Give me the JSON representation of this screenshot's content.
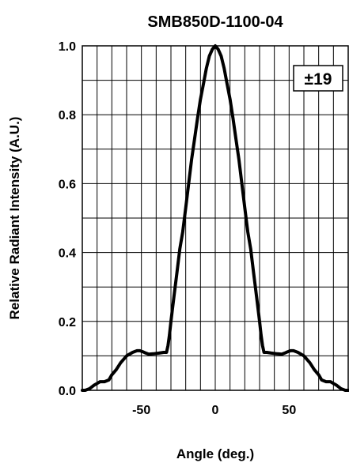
{
  "chart_data": {
    "type": "line",
    "title": "SMB850D-1100-04",
    "xlabel": "Angle (deg.)",
    "ylabel": "Relative Radiant Intensity (A.U.)",
    "xlim": [
      -90,
      90
    ],
    "ylim": [
      0,
      1
    ],
    "xticks": [
      -50,
      0,
      50
    ],
    "xtick_labels": [
      "-50",
      "0",
      "50"
    ],
    "yticks": [
      0,
      0.2,
      0.4,
      0.6,
      0.8,
      1
    ],
    "ytick_labels": [
      "0.0",
      "0.2",
      "0.4",
      "0.6",
      "0.8",
      "1.0"
    ],
    "grid": true,
    "annotation": "±19",
    "series": [
      {
        "x": [
          -90,
          -88,
          -85,
          -82,
          -80,
          -78,
          -75,
          -72,
          -70,
          -67,
          -64,
          -60,
          -56,
          -53,
          -51,
          -49,
          -47,
          -45,
          -42,
          -38,
          -35,
          -33,
          -32,
          -31,
          -30,
          -28,
          -26,
          -24,
          -22,
          -20,
          -18,
          -16,
          -14,
          -12,
          -10,
          -8,
          -6,
          -4,
          -2,
          0,
          2,
          4,
          6,
          8,
          10,
          12,
          14,
          16,
          18,
          20,
          22,
          24,
          26,
          28,
          30,
          31,
          32,
          33,
          35,
          38,
          42,
          45,
          47,
          49,
          51,
          53,
          56,
          60,
          64,
          67,
          70,
          72,
          75,
          78,
          80,
          82,
          85,
          88,
          90
        ],
        "y": [
          0.0,
          0.0,
          0.005,
          0.015,
          0.02,
          0.025,
          0.025,
          0.03,
          0.045,
          0.06,
          0.08,
          0.1,
          0.11,
          0.115,
          0.115,
          0.112,
          0.108,
          0.105,
          0.106,
          0.108,
          0.11,
          0.11,
          0.13,
          0.16,
          0.2,
          0.27,
          0.34,
          0.41,
          0.46,
          0.53,
          0.6,
          0.67,
          0.73,
          0.79,
          0.845,
          0.89,
          0.935,
          0.97,
          0.99,
          1.0,
          0.99,
          0.97,
          0.935,
          0.89,
          0.845,
          0.79,
          0.73,
          0.67,
          0.6,
          0.53,
          0.46,
          0.41,
          0.34,
          0.27,
          0.2,
          0.16,
          0.13,
          0.11,
          0.11,
          0.108,
          0.106,
          0.105,
          0.108,
          0.112,
          0.115,
          0.115,
          0.11,
          0.1,
          0.08,
          0.06,
          0.045,
          0.03,
          0.025,
          0.025,
          0.02,
          0.015,
          0.005,
          0.0,
          0.0
        ]
      }
    ]
  }
}
